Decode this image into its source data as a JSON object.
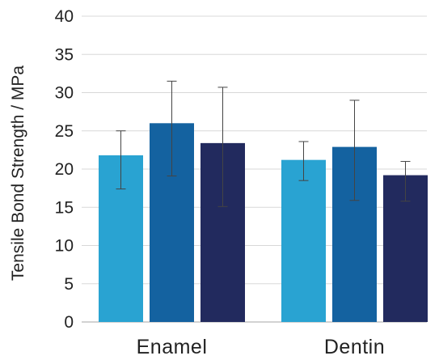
{
  "chart_data": {
    "type": "bar",
    "title": "",
    "xlabel": "",
    "ylabel": "Tensile  Bond Strength / MPa",
    "categories": [
      "Enamel",
      "Dentin"
    ],
    "ylim": [
      0,
      40
    ],
    "yticks": [
      0,
      5,
      10,
      15,
      20,
      25,
      30,
      35,
      40
    ],
    "grid": true,
    "legend": "none",
    "series": [
      {
        "color": "#29a3d2",
        "values": [
          21.8,
          21.2
        ],
        "error_low": [
          17.4,
          18.5
        ],
        "error_high": [
          25.0,
          23.6
        ]
      },
      {
        "color": "#1462a0",
        "values": [
          26.0,
          22.9
        ],
        "error_low": [
          19.1,
          15.9
        ],
        "error_high": [
          31.5,
          29.0
        ]
      },
      {
        "color": "#222a5e",
        "values": [
          23.4,
          19.2
        ],
        "error_low": [
          15.1,
          15.8
        ],
        "error_high": [
          30.7,
          21.0
        ]
      }
    ]
  }
}
